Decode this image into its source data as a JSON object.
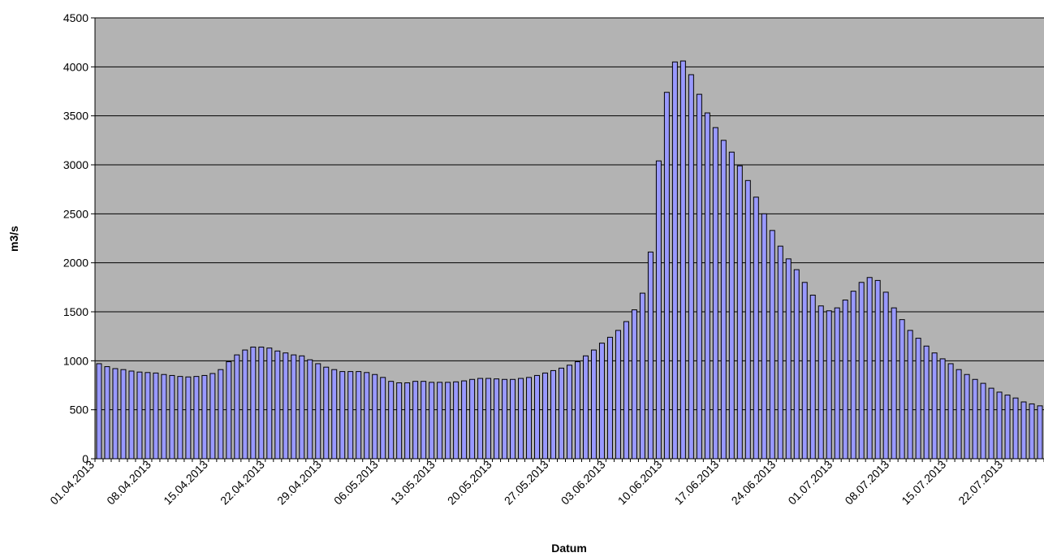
{
  "chart_data": {
    "type": "bar",
    "title": "",
    "xlabel": "Datum",
    "ylabel": "m3/s",
    "ylim": [
      0,
      4500
    ],
    "yticks": [
      0,
      500,
      1000,
      1500,
      2000,
      2500,
      3000,
      3500,
      4000,
      4500
    ],
    "grid": true,
    "legend": "none",
    "colors": {
      "plot_area": "#b3b3b3",
      "bar_fill": "#9999ff",
      "bar_stroke": "#000000",
      "gridline": "#000000"
    },
    "start_date": "01.04.2013",
    "tick_labels": [
      "01.04.2013",
      "08.04.2013",
      "15.04.2013",
      "22.04.2013",
      "29.04.2013",
      "06.05.2013",
      "13.05.2013",
      "20.05.2013",
      "27.05.2013",
      "03.06.2013",
      "10.06.2013",
      "17.06.2013",
      "24.06.2013",
      "01.07.2013",
      "08.07.2013",
      "15.07.2013",
      "22.07.2013"
    ],
    "values": [
      970,
      940,
      920,
      910,
      895,
      885,
      880,
      875,
      860,
      850,
      840,
      835,
      840,
      850,
      870,
      910,
      990,
      1060,
      1110,
      1140,
      1140,
      1130,
      1100,
      1080,
      1060,
      1050,
      1010,
      970,
      935,
      910,
      890,
      890,
      890,
      880,
      860,
      830,
      790,
      775,
      775,
      790,
      790,
      780,
      780,
      780,
      785,
      795,
      810,
      820,
      820,
      815,
      810,
      810,
      820,
      830,
      850,
      875,
      900,
      925,
      955,
      990,
      1050,
      1110,
      1180,
      1240,
      1310,
      1400,
      1520,
      1690,
      2110,
      3040,
      3740,
      4050,
      4060,
      3920,
      3720,
      3530,
      3380,
      3250,
      3130,
      2990,
      2840,
      2670,
      2500,
      2330,
      2170,
      2040,
      1930,
      1800,
      1670,
      1560,
      1510,
      1540,
      1620,
      1710,
      1800,
      1850,
      1820,
      1700,
      1540,
      1420,
      1310,
      1230,
      1150,
      1080,
      1020,
      970,
      910,
      860,
      810,
      770,
      720,
      680,
      650,
      620,
      580,
      560,
      540
    ]
  }
}
